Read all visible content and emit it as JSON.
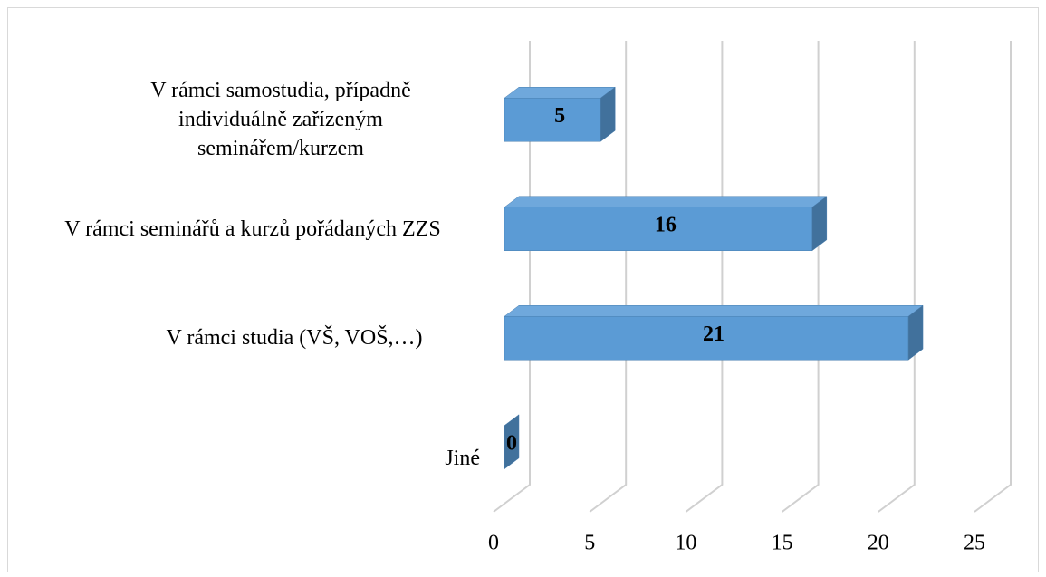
{
  "chart_data": {
    "type": "bar3d_horizontal",
    "categories": [
      "V rámci samostudia, případně individuálně zařízeným seminářem/kurzem",
      "V rámci seminářů a kurzů pořádaných ZZS",
      "V rámci studia (VŠ, VOŠ,…)",
      "Jiné"
    ],
    "values": [
      5,
      16,
      21,
      0
    ],
    "color": "#5b9bd5",
    "xlim": [
      0,
      25
    ],
    "xticks": [
      0,
      5,
      10,
      15,
      20,
      25
    ],
    "grid": true
  }
}
